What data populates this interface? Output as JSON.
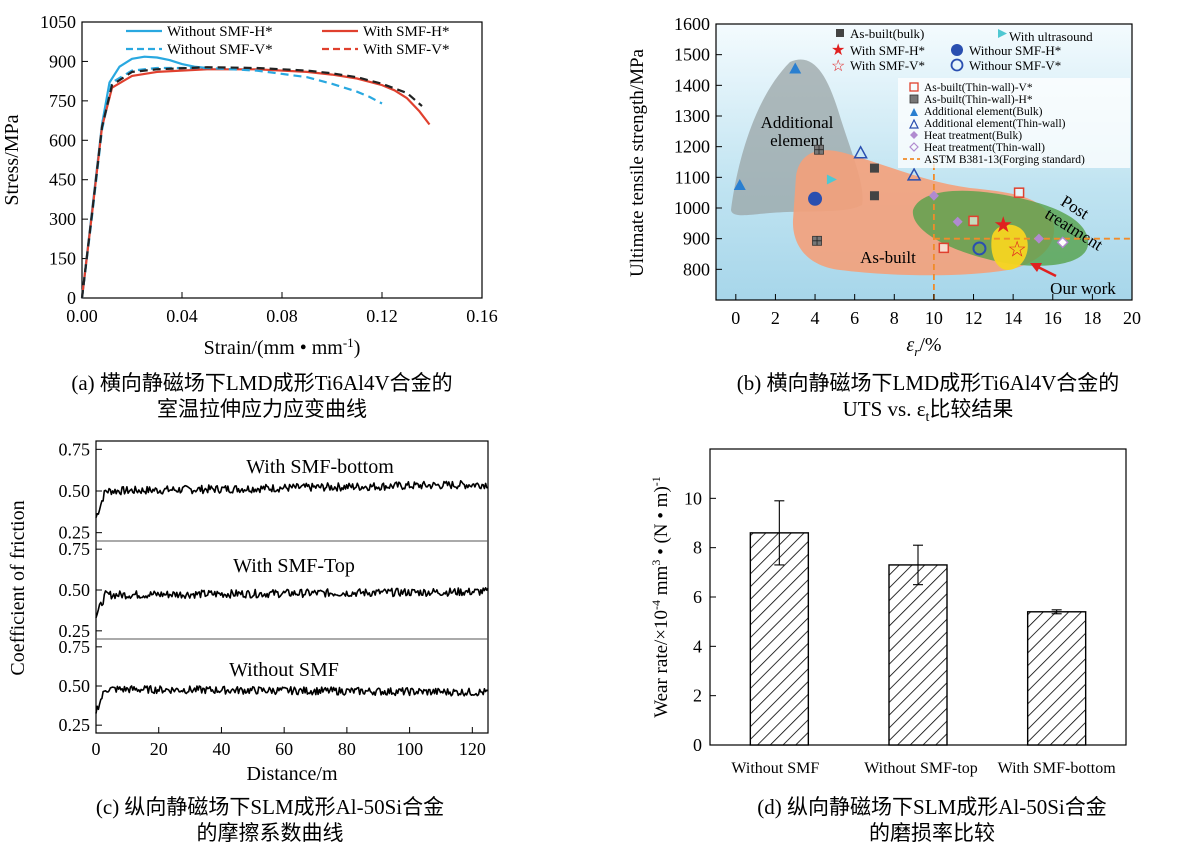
{
  "figure": {
    "captions": {
      "a": {
        "line1": "(a) 横向静磁场下LMD成形Ti6Al4V合金的",
        "line2": "室温拉伸应力应变曲线"
      },
      "b": {
        "line1": "(b) 横向静磁场下LMD成形Ti6Al4V合金的",
        "line2_main": "UTS vs. ε",
        "line2_sub": "t",
        "line2_tail": "比较结果"
      },
      "c": {
        "line1": "(c) 纵向静磁场下SLM成形Al-50Si合金",
        "line2": "的摩擦系数曲线"
      },
      "d": {
        "line1": "(d) 纵向静磁场下SLM成形Al-50Si合金",
        "line2": "的磨损率比较"
      }
    }
  },
  "chart_data": [
    {
      "id": "a",
      "type": "line",
      "xlabel_main": "Strain/(mm • mm",
      "xlabel_sup": "-1",
      "xlabel_tail": ")",
      "ylabel": "Stress/MPa",
      "xlim": [
        0,
        0.16
      ],
      "ylim": [
        0,
        1050
      ],
      "xticks": [
        "0.00",
        "0.04",
        "0.08",
        "0.12",
        "0.16"
      ],
      "yticks": [
        "0",
        "150",
        "300",
        "450",
        "600",
        "750",
        "900",
        "1050"
      ],
      "legend": [
        "Without SMF-H*",
        "With SMF-H*",
        "Without SMF-V*",
        "With SMF-V*"
      ],
      "series": [
        {
          "name": "Without SMF-H*",
          "color": "#29a8e0",
          "dash": "solid",
          "x": [
            0,
            0.004,
            0.008,
            0.011,
            0.015,
            0.02,
            0.025,
            0.03,
            0.035,
            0.04,
            0.045,
            0.05
          ],
          "y": [
            0,
            330,
            660,
            820,
            880,
            910,
            918,
            915,
            905,
            890,
            880,
            875
          ]
        },
        {
          "name": "With SMF-H*",
          "color": "#e0402e",
          "dash": "solid",
          "x": [
            0,
            0.004,
            0.008,
            0.012,
            0.02,
            0.03,
            0.05,
            0.07,
            0.09,
            0.1,
            0.11,
            0.12,
            0.125,
            0.13,
            0.135,
            0.139
          ],
          "y": [
            0,
            320,
            650,
            800,
            845,
            860,
            870,
            870,
            860,
            850,
            835,
            810,
            790,
            760,
            710,
            660
          ]
        },
        {
          "name": "Without SMF-V*",
          "color": "#29a8e0",
          "dash": "dashed",
          "x": [
            0,
            0.004,
            0.008,
            0.012,
            0.02,
            0.03,
            0.05,
            0.07,
            0.09,
            0.1,
            0.11,
            0.115,
            0.12
          ],
          "y": [
            0,
            310,
            640,
            820,
            865,
            875,
            875,
            865,
            840,
            815,
            785,
            765,
            740
          ]
        },
        {
          "name": "With SMF-V*",
          "color": "#222222",
          "dash": "dashed",
          "x": [
            0,
            0.004,
            0.008,
            0.012,
            0.02,
            0.03,
            0.05,
            0.07,
            0.09,
            0.1,
            0.11,
            0.12,
            0.13,
            0.136
          ],
          "y": [
            0,
            320,
            650,
            810,
            860,
            870,
            878,
            875,
            865,
            855,
            840,
            815,
            780,
            730
          ]
        }
      ]
    },
    {
      "id": "b",
      "type": "scatter",
      "ylabel": "Ultimate tensile strength/MPa",
      "xlabel_main": "ε",
      "xlabel_sub": "r",
      "xlabel_tail": "/%",
      "xlim": [
        -1,
        20
      ],
      "ylim": [
        700,
        1600
      ],
      "xticks": [
        "0",
        "2",
        "4",
        "6",
        "8",
        "10",
        "12",
        "14",
        "16",
        "18",
        "20"
      ],
      "yticks": [
        "800",
        "900",
        "1000",
        "1100",
        "1200",
        "1300",
        "1400",
        "1500",
        "1600"
      ],
      "regions": [
        "Additional element",
        "As-built",
        "Post treatment",
        "Our work"
      ],
      "region_labels": {
        "additional": [
          "Additional",
          "element"
        ],
        "asbuilt": "As-built",
        "post": [
          "Post",
          "treatment"
        ],
        "ourwork": "Our work"
      },
      "reference_line": {
        "name": "ASTM B381-13(Forging standard)",
        "x": 10,
        "y": 900
      },
      "legend_top": [
        "As-built(bulk)",
        "With ultrasound",
        "With SMF-H*",
        "Withour SMF-H*",
        "With SMF-V*",
        "Withour SMF-V*"
      ],
      "legend_right": [
        "As-built(Thin-wall)-V*",
        "As-built(Thin-wall)-H*",
        "Additional element(Bulk)",
        "Additional element(Thin-wall)",
        "Heat treatment(Bulk)",
        "Heat treatment(Thin-wall)",
        "ASTM B381-13(Forging standard)"
      ],
      "points": [
        {
          "series": "As-built(bulk)",
          "x": 7.0,
          "y": 1130
        },
        {
          "series": "As-built(bulk)",
          "x": 7.0,
          "y": 1040
        },
        {
          "series": "As-built(Thin-wall)-H*",
          "x": 4.2,
          "y": 1190
        },
        {
          "series": "As-built(Thin-wall)-H*",
          "x": 4.1,
          "y": 893
        },
        {
          "series": "As-built(Thin-wall)-V*",
          "x": 10.5,
          "y": 870
        },
        {
          "series": "As-built(Thin-wall)-V*",
          "x": 12.0,
          "y": 958
        },
        {
          "series": "As-built(Thin-wall)-V*",
          "x": 14.3,
          "y": 1050
        },
        {
          "series": "Additional element(Bulk)",
          "x": 3.0,
          "y": 1455
        },
        {
          "series": "Additional element(Bulk)",
          "x": 0.2,
          "y": 1075
        },
        {
          "series": "Additional element(Thin-wall)",
          "x": 6.3,
          "y": 1180
        },
        {
          "series": "Additional element(Thin-wall)",
          "x": 9.0,
          "y": 1108
        },
        {
          "series": "With ultrasound",
          "x": 4.8,
          "y": 1093
        },
        {
          "series": "Withour SMF-H*",
          "x": 4.0,
          "y": 1030
        },
        {
          "series": "Withour SMF-V*",
          "x": 12.3,
          "y": 868
        },
        {
          "series": "With SMF-H*",
          "x": 13.5,
          "y": 945
        },
        {
          "series": "With SMF-V*",
          "x": 14.2,
          "y": 865
        },
        {
          "series": "Heat treatment(Bulk)",
          "x": 10.0,
          "y": 1040
        },
        {
          "series": "Heat treatment(Bulk)",
          "x": 11.2,
          "y": 955
        },
        {
          "series": "Heat treatment(Bulk)",
          "x": 15.3,
          "y": 900
        },
        {
          "series": "Heat treatment(Thin-wall)",
          "x": 16.5,
          "y": 888
        }
      ]
    },
    {
      "id": "c",
      "type": "line",
      "ylabel": "Coefficient of friction",
      "xlabel": "Distance/m",
      "xlim": [
        0,
        125
      ],
      "xticks": [
        "0",
        "20",
        "40",
        "60",
        "80",
        "100",
        "120"
      ],
      "panel_yticks": [
        "0.25",
        "0.50",
        "0.75"
      ],
      "panels": [
        {
          "name": "With SMF-bottom",
          "ylim": [
            0.2,
            0.8
          ],
          "level": 0.5,
          "end": 0.54
        },
        {
          "name": "With SMF-Top",
          "ylim": [
            0.2,
            0.8
          ],
          "level": 0.47,
          "end": 0.49
        },
        {
          "name": "Without SMF",
          "ylim": [
            0.2,
            0.8
          ],
          "level": 0.48,
          "end": 0.46
        }
      ]
    },
    {
      "id": "d",
      "type": "bar",
      "ylabel_main": "Wear rate/×10",
      "ylabel_sup1": "-4",
      "ylabel_mid": " mm",
      "ylabel_sup2": "3",
      "ylabel_tail": " • (N • m)",
      "ylabel_sup3": "-1",
      "categories": [
        "Without SMF",
        "Without SMF-top",
        "With SMF-bottom"
      ],
      "values": [
        8.6,
        7.3,
        5.4
      ],
      "errors": [
        1.3,
        0.8,
        0.08
      ],
      "ylim": [
        0,
        12
      ],
      "yticks": [
        "0",
        "2",
        "4",
        "6",
        "8",
        "10"
      ]
    }
  ]
}
